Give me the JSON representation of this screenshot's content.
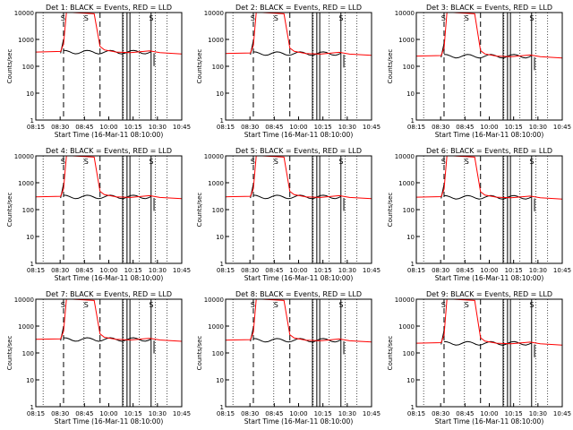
{
  "chart_data": [
    {
      "type": "line",
      "title": "Det 1: BLACK = Events, RED = LLD",
      "xlabel": "Start Time (16-Mar-11 08:10:00)",
      "ylabel": "Counts/sec",
      "xticks": [
        "08:15",
        "08:30",
        "08:45",
        "10:00",
        "10:15",
        "10:30",
        "10:45"
      ],
      "yticks": [
        "1",
        "10",
        "100",
        "1000",
        "10000"
      ],
      "ylim": [
        1,
        10000
      ],
      "yscale": "log",
      "labels_near_top": [
        "S",
        "S",
        "S"
      ],
      "series": [
        {
          "name": "Events",
          "color": "#000000",
          "approx_level": 340
        },
        {
          "name": "LLD",
          "color": "#ff0000",
          "approx_level": 340,
          "peak": 10000
        }
      ]
    },
    {
      "type": "line",
      "title": "Det 2: BLACK = Events, RED = LLD",
      "xlabel": "Start Time (16-Mar-11 08:10:00)",
      "ylabel": "Counts/sec",
      "xticks": [
        "08:15",
        "08:30",
        "08:45",
        "10:00",
        "10:15",
        "10:30",
        "10:45"
      ],
      "yticks": [
        "1",
        "10",
        "100",
        "1000",
        "10000"
      ],
      "ylim": [
        1,
        10000
      ],
      "yscale": "log",
      "labels_near_top": [
        "S",
        "S",
        "S"
      ],
      "series": [
        {
          "name": "Events",
          "color": "#000000",
          "approx_level": 300
        },
        {
          "name": "LLD",
          "color": "#ff0000",
          "approx_level": 300,
          "peak": 10000
        }
      ]
    },
    {
      "type": "line",
      "title": "Det 3: BLACK = Events, RED = LLD",
      "xlabel": "Start Time (16-Mar-11 08:10:00)",
      "ylabel": "Counts/sec",
      "xticks": [
        "08:15",
        "08:30",
        "08:45",
        "10:00",
        "10:15",
        "10:30",
        "10:45"
      ],
      "yticks": [
        "1",
        "10",
        "100",
        "1000",
        "10000"
      ],
      "ylim": [
        1,
        10000
      ],
      "yscale": "log",
      "labels_near_top": [
        "S",
        "S",
        "S"
      ],
      "series": [
        {
          "name": "Events",
          "color": "#000000",
          "approx_level": 240
        },
        {
          "name": "LLD",
          "color": "#ff0000",
          "approx_level": 240,
          "peak": 10000
        }
      ]
    },
    {
      "type": "line",
      "title": "Det 4: BLACK = Events, RED = LLD",
      "xlabel": "Start Time (16-Mar-11 08:10:00)",
      "ylabel": "Counts/sec",
      "xticks": [
        "08:15",
        "08:30",
        "08:45",
        "10:00",
        "10:15",
        "10:30",
        "10:45"
      ],
      "yticks": [
        "1",
        "10",
        "100",
        "1000",
        "10000"
      ],
      "ylim": [
        1,
        10000
      ],
      "yscale": "log",
      "labels_near_top": [
        "S",
        "S",
        "S"
      ],
      "series": [
        {
          "name": "Events",
          "color": "#000000",
          "approx_level": 300
        },
        {
          "name": "LLD",
          "color": "#ff0000",
          "approx_level": 300,
          "peak": 10000
        }
      ]
    },
    {
      "type": "line",
      "title": "Det 5: BLACK = Events, RED = LLD",
      "xlabel": "Start Time (16-Mar-11 08:10:00)",
      "ylabel": "Counts/sec",
      "xticks": [
        "08:15",
        "08:30",
        "08:45",
        "10:00",
        "10:15",
        "10:30",
        "10:45"
      ],
      "yticks": [
        "1",
        "10",
        "100",
        "1000",
        "10000"
      ],
      "ylim": [
        1,
        10000
      ],
      "yscale": "log",
      "labels_near_top": [
        "S",
        "S",
        "S"
      ],
      "series": [
        {
          "name": "Events",
          "color": "#000000",
          "approx_level": 300
        },
        {
          "name": "LLD",
          "color": "#ff0000",
          "approx_level": 300,
          "peak": 10000
        }
      ]
    },
    {
      "type": "line",
      "title": "Det 6: BLACK = Events, RED = LLD",
      "xlabel": "Start Time (16-Mar-11 08:10:00)",
      "ylabel": "Counts/sec",
      "xticks": [
        "08:15",
        "08:30",
        "08:45",
        "10:00",
        "10:15",
        "10:30",
        "10:45"
      ],
      "yticks": [
        "1",
        "10",
        "100",
        "1000",
        "10000"
      ],
      "ylim": [
        1,
        10000
      ],
      "yscale": "log",
      "labels_near_top": [
        "S",
        "S",
        "S"
      ],
      "series": [
        {
          "name": "Events",
          "color": "#000000",
          "approx_level": 290
        },
        {
          "name": "LLD",
          "color": "#ff0000",
          "approx_level": 290,
          "peak": 10000
        }
      ]
    },
    {
      "type": "line",
      "title": "Det 7: BLACK = Events, RED = LLD",
      "xlabel": "Start Time (16-Mar-11 08:10:00)",
      "ylabel": "Counts/sec",
      "xticks": [
        "08:15",
        "08:30",
        "08:45",
        "10:00",
        "10:15",
        "10:30",
        "10:45"
      ],
      "yticks": [
        "1",
        "10",
        "100",
        "1000",
        "10000"
      ],
      "ylim": [
        1,
        10000
      ],
      "yscale": "log",
      "labels_near_top": [
        "S",
        "S",
        "S"
      ],
      "series": [
        {
          "name": "Events",
          "color": "#000000",
          "approx_level": 320
        },
        {
          "name": "LLD",
          "color": "#ff0000",
          "approx_level": 320,
          "peak": 10000
        }
      ]
    },
    {
      "type": "line",
      "title": "Det 8: BLACK = Events, RED = LLD",
      "xlabel": "Start Time (16-Mar-11 08:10:00)",
      "ylabel": "Counts/sec",
      "xticks": [
        "08:15",
        "08:30",
        "08:45",
        "10:00",
        "10:15",
        "10:30",
        "10:45"
      ],
      "yticks": [
        "1",
        "10",
        "100",
        "1000",
        "10000"
      ],
      "ylim": [
        1,
        10000
      ],
      "yscale": "log",
      "labels_near_top": [
        "S",
        "S",
        "S"
      ],
      "series": [
        {
          "name": "Events",
          "color": "#000000",
          "approx_level": 300
        },
        {
          "name": "LLD",
          "color": "#ff0000",
          "approx_level": 300,
          "peak": 10000
        }
      ]
    },
    {
      "type": "line",
      "title": "Det 9: BLACK = Events, RED = LLD",
      "xlabel": "Start Time (16-Mar-11 08:10:00)",
      "ylabel": "Counts/sec",
      "xticks": [
        "08:15",
        "08:30",
        "08:45",
        "10:00",
        "10:15",
        "10:30",
        "10:45"
      ],
      "yticks": [
        "1",
        "10",
        "100",
        "1000",
        "10000"
      ],
      "ylim": [
        1,
        10000
      ],
      "yscale": "log",
      "labels_near_top": [
        "S",
        "S",
        "S"
      ],
      "series": [
        {
          "name": "Events",
          "color": "#000000",
          "approx_level": 230
        },
        {
          "name": "LLD",
          "color": "#ff0000",
          "approx_level": 230,
          "peak": 10000
        }
      ]
    }
  ]
}
